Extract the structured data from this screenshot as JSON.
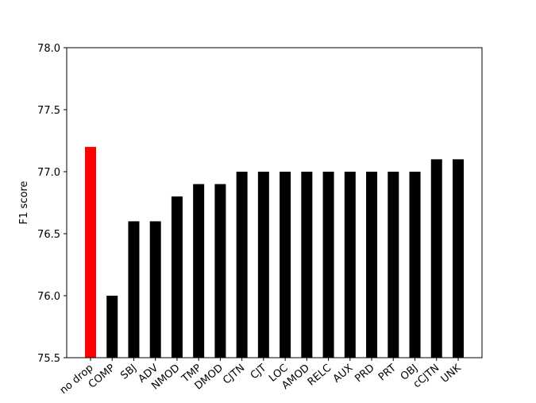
{
  "chart_data": {
    "type": "bar",
    "ylabel": "F1 score",
    "categories": [
      "no drop",
      "COMP",
      "SBJ",
      "ADV",
      "NMOD",
      "TMP",
      "DMOD",
      "CJTN",
      "CJT",
      "LOC",
      "AMOD",
      "RELC",
      "AUX",
      "PRD",
      "PRT",
      "OBJ",
      "cCJTN",
      "UNK"
    ],
    "values": [
      77.2,
      76.0,
      76.6,
      76.6,
      76.8,
      76.9,
      76.9,
      77.0,
      77.0,
      77.0,
      77.0,
      77.0,
      77.0,
      77.0,
      77.0,
      77.0,
      77.1,
      77.1
    ],
    "colors": [
      "#ff0000",
      "#000000",
      "#000000",
      "#000000",
      "#000000",
      "#000000",
      "#000000",
      "#000000",
      "#000000",
      "#000000",
      "#000000",
      "#000000",
      "#000000",
      "#000000",
      "#000000",
      "#000000",
      "#000000",
      "#000000"
    ],
    "ylim": [
      75.5,
      78.0
    ],
    "yticks": [
      {
        "value": 75.5,
        "label": "75.5"
      },
      {
        "value": 76,
        "label": "76.0"
      },
      {
        "value": 76.5,
        "label": "76.5"
      },
      {
        "value": 77,
        "label": "77.0"
      },
      {
        "value": 77.5,
        "label": "77.5"
      },
      {
        "value": 78,
        "label": "78.0"
      }
    ],
    "grid": false
  }
}
